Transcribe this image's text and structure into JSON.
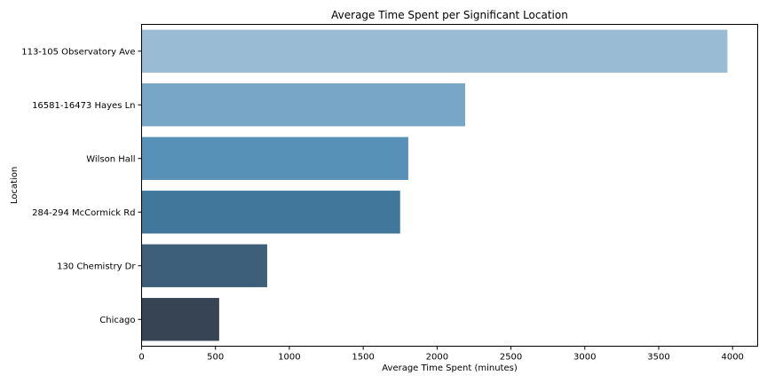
{
  "chart_data": {
    "type": "bar",
    "orientation": "horizontal",
    "title": "Average Time Spent per Significant Location",
    "xlabel": "Average Time Spent (minutes)",
    "ylabel": "Location",
    "categories": [
      "113-105 Observatory Ave",
      "16581-16473 Hayes Ln",
      "Wilson Hall",
      "284-294 McCormick Rd",
      "130 Chemistry Dr",
      "Chicago"
    ],
    "values": [
      3965,
      2190,
      1805,
      1750,
      850,
      525
    ],
    "colors": [
      "#9abbd4",
      "#78a6c6",
      "#5891b8",
      "#42779c",
      "#3e5f7a",
      "#374453"
    ],
    "xlim": [
      0,
      4170
    ],
    "xticks": [
      0,
      500,
      1000,
      1500,
      2000,
      2500,
      3000,
      3500,
      4000
    ],
    "grid": false,
    "legend": "none"
  }
}
